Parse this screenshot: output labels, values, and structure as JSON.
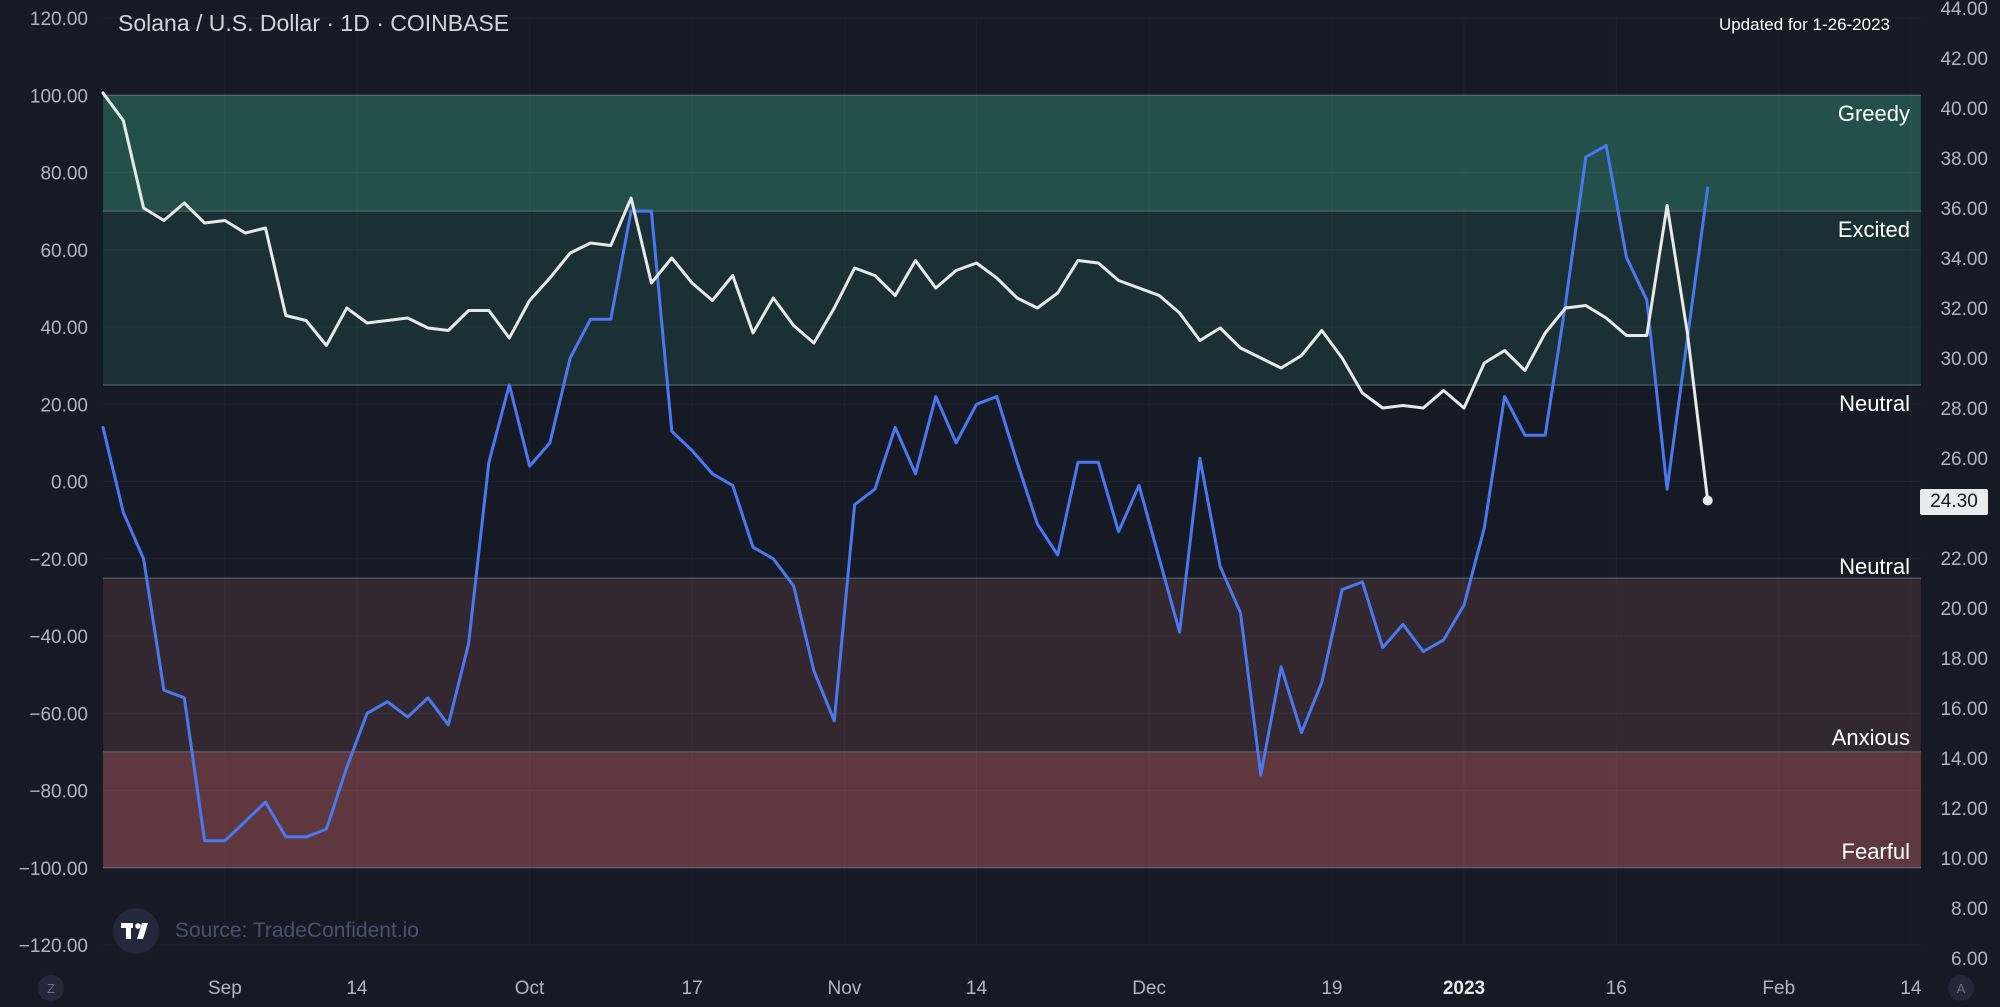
{
  "header": {
    "title": "Solana / U.S. Dollar · 1D · COINBASE",
    "updated": "Updated for 1-26-2023"
  },
  "zones": {
    "greedy": "Greedy",
    "excited": "Excited",
    "neutral_upper": "Neutral",
    "neutral_lower": "Neutral",
    "anxious": "Anxious",
    "fearful": "Fearful"
  },
  "price_badge": "24.30",
  "source": "Source: TradeConfident.io",
  "corner_buttons": {
    "left": "Z",
    "right": "A"
  },
  "colors": {
    "background": "#161a25",
    "sentiment_line": "#4a78f0",
    "greedy_zone": "#24504b",
    "excited_zone": "#1b3034",
    "anxious_zone": "#33282f",
    "fearful_zone": "#5f373f"
  },
  "chart_data": {
    "type": "line",
    "x_axis": {
      "tick_labels": [
        "Sep",
        "14",
        "Oct",
        "17",
        "Nov",
        "14",
        "Dec",
        "19",
        "2023",
        "16",
        "Feb",
        "14"
      ],
      "tick_dates": [
        "2022-09-01",
        "2022-09-14",
        "2022-10-01",
        "2022-10-17",
        "2022-11-01",
        "2022-11-14",
        "2022-12-01",
        "2022-12-19",
        "2023-01-01",
        "2023-01-16",
        "2023-02-01",
        "2023-02-14"
      ],
      "range": [
        "2022-08-20",
        "2023-02-15"
      ]
    },
    "left_axis": {
      "tick_labels": [
        "120.00",
        "100.00",
        "80.00",
        "60.00",
        "40.00",
        "20.00",
        "0.00",
        "−20.00",
        "−40.00",
        "−60.00",
        "−80.00",
        "−100.00",
        "−120.00"
      ],
      "range": [
        -120,
        120
      ]
    },
    "right_axis": {
      "tick_labels": [
        "44.00",
        "42.00",
        "40.00",
        "38.00",
        "36.00",
        "34.00",
        "32.00",
        "30.00",
        "28.00",
        "26.00",
        "24.00",
        "22.00",
        "20.00",
        "18.00",
        "16.00",
        "14.00",
        "12.00",
        "10.00",
        "8.00",
        "6.00"
      ],
      "range": [
        6,
        44
      ]
    },
    "zone_bounds": [
      100,
      70,
      25,
      -25,
      -70,
      -100
    ],
    "series": [
      {
        "role": "sentiment (left axis)",
        "color": "#4a78f0",
        "points": [
          [
            "2022-08-20",
            14
          ],
          [
            "2022-08-22",
            -8
          ],
          [
            "2022-08-24",
            -20
          ],
          [
            "2022-08-26",
            -54
          ],
          [
            "2022-08-28",
            -56
          ],
          [
            "2022-08-30",
            -93
          ],
          [
            "2022-09-01",
            -93
          ],
          [
            "2022-09-03",
            -88
          ],
          [
            "2022-09-05",
            -83
          ],
          [
            "2022-09-07",
            -92
          ],
          [
            "2022-09-09",
            -92
          ],
          [
            "2022-09-11",
            -90
          ],
          [
            "2022-09-13",
            -74
          ],
          [
            "2022-09-15",
            -60
          ],
          [
            "2022-09-17",
            -57
          ],
          [
            "2022-09-19",
            -61
          ],
          [
            "2022-09-21",
            -56
          ],
          [
            "2022-09-23",
            -63
          ],
          [
            "2022-09-25",
            -42
          ],
          [
            "2022-09-27",
            5
          ],
          [
            "2022-09-29",
            25
          ],
          [
            "2022-10-01",
            4
          ],
          [
            "2022-10-03",
            10
          ],
          [
            "2022-10-05",
            32
          ],
          [
            "2022-10-07",
            42
          ],
          [
            "2022-10-09",
            42
          ],
          [
            "2022-10-11",
            70
          ],
          [
            "2022-10-13",
            70
          ],
          [
            "2022-10-15",
            13
          ],
          [
            "2022-10-17",
            8
          ],
          [
            "2022-10-19",
            2
          ],
          [
            "2022-10-21",
            -1
          ],
          [
            "2022-10-23",
            -17
          ],
          [
            "2022-10-25",
            -20
          ],
          [
            "2022-10-27",
            -27
          ],
          [
            "2022-10-29",
            -49
          ],
          [
            "2022-10-31",
            -62
          ],
          [
            "2022-11-02",
            -6
          ],
          [
            "2022-11-04",
            -2
          ],
          [
            "2022-11-06",
            14
          ],
          [
            "2022-11-08",
            2
          ],
          [
            "2022-11-10",
            22
          ],
          [
            "2022-11-12",
            10
          ],
          [
            "2022-11-14",
            20
          ],
          [
            "2022-11-16",
            22
          ],
          [
            "2022-11-18",
            5
          ],
          [
            "2022-11-20",
            -11
          ],
          [
            "2022-11-22",
            -19
          ],
          [
            "2022-11-24",
            5
          ],
          [
            "2022-11-26",
            5
          ],
          [
            "2022-11-28",
            -13
          ],
          [
            "2022-11-30",
            -1
          ],
          [
            "2022-12-02",
            -20
          ],
          [
            "2022-12-04",
            -39
          ],
          [
            "2022-12-06",
            6
          ],
          [
            "2022-12-08",
            -22
          ],
          [
            "2022-12-10",
            -34
          ],
          [
            "2022-12-12",
            -76
          ],
          [
            "2022-12-14",
            -48
          ],
          [
            "2022-12-16",
            -65
          ],
          [
            "2022-12-18",
            -52
          ],
          [
            "2022-12-20",
            -28
          ],
          [
            "2022-12-22",
            -26
          ],
          [
            "2022-12-24",
            -43
          ],
          [
            "2022-12-26",
            -37
          ],
          [
            "2022-12-28",
            -44
          ],
          [
            "2022-12-30",
            -41
          ],
          [
            "2023-01-01",
            -32
          ],
          [
            "2023-01-03",
            -12
          ],
          [
            "2023-01-05",
            22
          ],
          [
            "2023-01-07",
            12
          ],
          [
            "2023-01-09",
            12
          ],
          [
            "2023-01-11",
            46
          ],
          [
            "2023-01-13",
            84
          ],
          [
            "2023-01-15",
            87
          ],
          [
            "2023-01-17",
            58
          ],
          [
            "2023-01-19",
            47
          ],
          [
            "2023-01-21",
            -2
          ],
          [
            "2023-01-23",
            37
          ],
          [
            "2023-01-25",
            76
          ]
        ]
      },
      {
        "role": "price (right axis)",
        "color": "#e6e8ec",
        "points": [
          [
            "2022-08-20",
            40.6
          ],
          [
            "2022-08-22",
            39.5
          ],
          [
            "2022-08-24",
            36.0
          ],
          [
            "2022-08-26",
            35.5
          ],
          [
            "2022-08-28",
            36.2
          ],
          [
            "2022-08-30",
            35.4
          ],
          [
            "2022-09-01",
            35.5
          ],
          [
            "2022-09-03",
            35.0
          ],
          [
            "2022-09-05",
            35.2
          ],
          [
            "2022-09-07",
            31.7
          ],
          [
            "2022-09-09",
            31.5
          ],
          [
            "2022-09-11",
            30.5
          ],
          [
            "2022-09-13",
            32.0
          ],
          [
            "2022-09-15",
            31.4
          ],
          [
            "2022-09-17",
            31.5
          ],
          [
            "2022-09-19",
            31.6
          ],
          [
            "2022-09-21",
            31.2
          ],
          [
            "2022-09-23",
            31.1
          ],
          [
            "2022-09-25",
            31.9
          ],
          [
            "2022-09-27",
            31.9
          ],
          [
            "2022-09-29",
            30.8
          ],
          [
            "2022-10-01",
            32.3
          ],
          [
            "2022-10-03",
            33.2
          ],
          [
            "2022-10-05",
            34.2
          ],
          [
            "2022-10-07",
            34.6
          ],
          [
            "2022-10-09",
            34.5
          ],
          [
            "2022-10-11",
            36.4
          ],
          [
            "2022-10-13",
            33.0
          ],
          [
            "2022-10-15",
            34.0
          ],
          [
            "2022-10-17",
            33.0
          ],
          [
            "2022-10-19",
            32.3
          ],
          [
            "2022-10-21",
            33.3
          ],
          [
            "2022-10-23",
            31.0
          ],
          [
            "2022-10-25",
            32.4
          ],
          [
            "2022-10-27",
            31.3
          ],
          [
            "2022-10-29",
            30.6
          ],
          [
            "2022-10-31",
            32.0
          ],
          [
            "2022-11-02",
            33.6
          ],
          [
            "2022-11-04",
            33.3
          ],
          [
            "2022-11-06",
            32.5
          ],
          [
            "2022-11-08",
            33.9
          ],
          [
            "2022-11-10",
            32.8
          ],
          [
            "2022-11-12",
            33.5
          ],
          [
            "2022-11-14",
            33.8
          ],
          [
            "2022-11-16",
            33.2
          ],
          [
            "2022-11-18",
            32.4
          ],
          [
            "2022-11-20",
            32.0
          ],
          [
            "2022-11-22",
            32.6
          ],
          [
            "2022-11-24",
            33.9
          ],
          [
            "2022-11-26",
            33.8
          ],
          [
            "2022-11-28",
            33.1
          ],
          [
            "2022-11-30",
            32.8
          ],
          [
            "2022-12-02",
            32.5
          ],
          [
            "2022-12-04",
            31.8
          ],
          [
            "2022-12-06",
            30.7
          ],
          [
            "2022-12-08",
            31.2
          ],
          [
            "2022-12-10",
            30.4
          ],
          [
            "2022-12-12",
            30.0
          ],
          [
            "2022-12-14",
            29.6
          ],
          [
            "2022-12-16",
            30.1
          ],
          [
            "2022-12-18",
            31.1
          ],
          [
            "2022-12-20",
            30.0
          ],
          [
            "2022-12-22",
            28.6
          ],
          [
            "2022-12-24",
            28.0
          ],
          [
            "2022-12-26",
            28.1
          ],
          [
            "2022-12-28",
            28.0
          ],
          [
            "2022-12-30",
            28.7
          ],
          [
            "2023-01-01",
            28.0
          ],
          [
            "2023-01-03",
            29.8
          ],
          [
            "2023-01-05",
            30.3
          ],
          [
            "2023-01-07",
            29.5
          ],
          [
            "2023-01-09",
            31.0
          ],
          [
            "2023-01-11",
            32.0
          ],
          [
            "2023-01-13",
            32.1
          ],
          [
            "2023-01-15",
            31.6
          ],
          [
            "2023-01-17",
            30.9
          ],
          [
            "2023-01-19",
            30.9
          ],
          [
            "2023-01-21",
            36.1
          ],
          [
            "2023-01-23",
            31.0
          ],
          [
            "2023-01-25",
            24.3
          ]
        ]
      }
    ]
  }
}
